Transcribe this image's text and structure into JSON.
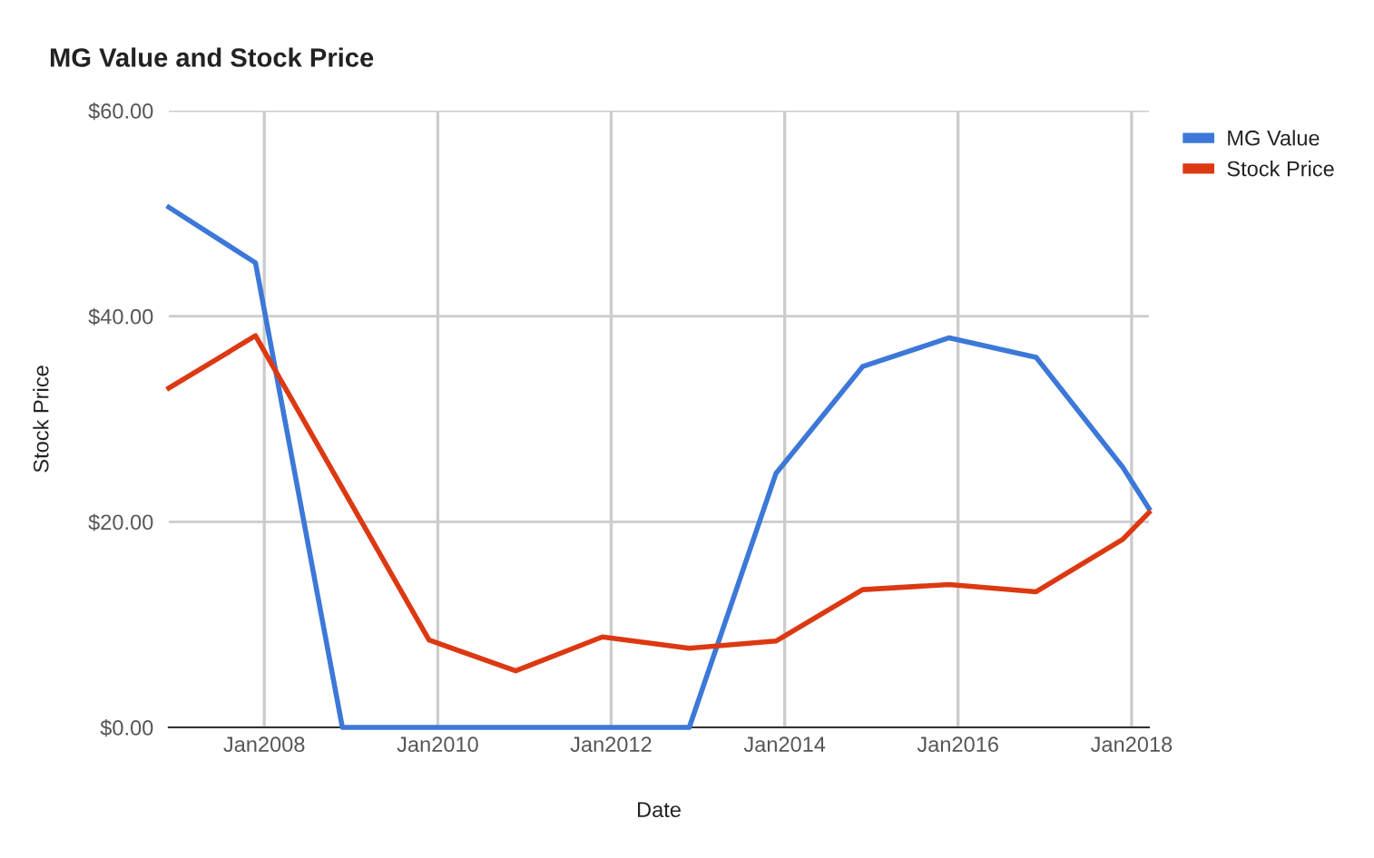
{
  "chart_data": {
    "type": "line",
    "title": "MG Value and Stock Price",
    "xlabel": "Date",
    "ylabel": "Stock Price",
    "series": [
      {
        "name": "MG Value",
        "color": "#3c78d8",
        "x": [
          "2006-11-25",
          "2007-11-25",
          "2008-11-25",
          "2009-11-25",
          "2010-11-25",
          "2011-11-25",
          "2012-11-25",
          "2013-11-25",
          "2014-11-25",
          "2015-11-25",
          "2016-11-25",
          "2017-11-25",
          "2018-03-15"
        ],
        "values": [
          50.6,
          45.2,
          0,
          0,
          0,
          0,
          0,
          24.7,
          35.1,
          37.9,
          36.0,
          25.3,
          21.3
        ]
      },
      {
        "name": "Stock Price",
        "color": "#dc3912",
        "x": [
          "2006-11-25",
          "2007-11-25",
          "2009-11-25",
          "2010-11-25",
          "2011-11-25",
          "2012-11-25",
          "2013-11-25",
          "2014-11-25",
          "2015-11-25",
          "2016-11-25",
          "2017-11-25",
          "2018-03-15"
        ],
        "values": [
          33.0,
          38.1,
          8.5,
          5.5,
          8.8,
          7.7,
          8.4,
          13.4,
          13.9,
          13.2,
          18.3,
          20.9
        ]
      }
    ],
    "xlim": [
      "2006-11-25",
      "2018-03-15"
    ],
    "xticks": [
      {
        "value": "2008-01-01",
        "label": "Jan2008"
      },
      {
        "value": "2010-01-01",
        "label": "Jan2010"
      },
      {
        "value": "2012-01-01",
        "label": "Jan2012"
      },
      {
        "value": "2014-01-01",
        "label": "Jan2014"
      },
      {
        "value": "2016-01-01",
        "label": "Jan2016"
      },
      {
        "value": "2018-01-01",
        "label": "Jan2018"
      }
    ],
    "ylim": [
      0,
      60
    ],
    "yticks": [
      {
        "value": 0,
        "label": "$0.00"
      },
      {
        "value": 20,
        "label": "$20.00"
      },
      {
        "value": 40,
        "label": "$40.00"
      },
      {
        "value": 60,
        "label": "$60.00"
      }
    ],
    "grid": true,
    "legend": "right",
    "marker": "none",
    "line_style": "solid"
  }
}
